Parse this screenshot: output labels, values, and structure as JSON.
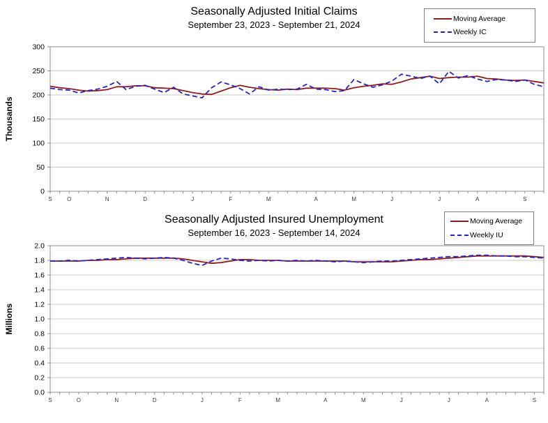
{
  "colors": {
    "moving_average": "#8B1E1E",
    "weekly": "#2525C4",
    "gridline": "#C9C9C9",
    "plot_border": "#8C8C8C",
    "tick": "#8C8C8C",
    "axis_text": "#000000",
    "month_label": "#3A3A3A",
    "legend_border": "#7F7F7F",
    "background": "#FFFFFF"
  },
  "chart_data": [
    {
      "type": "line",
      "title": "Seasonally Adjusted Initial Claims",
      "subtitle": "September 23, 2023 - September 21, 2024",
      "ylabel": "Thousands",
      "ylim": [
        0,
        300
      ],
      "ytick_labels": [
        "0",
        "50",
        "100",
        "150",
        "200",
        "250",
        "300"
      ],
      "ytick_values": [
        0,
        50,
        100,
        150,
        200,
        250,
        300
      ],
      "grid": true,
      "legend_position": "top-right",
      "n_weeks": 53,
      "x_month_labels": [
        "S",
        "O",
        "N",
        "D",
        "J",
        "F",
        "M",
        "A",
        "M",
        "J",
        "J",
        "A",
        "S"
      ],
      "x_month_week_indices": [
        0,
        2,
        6,
        10,
        15,
        19,
        23,
        28,
        32,
        36,
        41,
        45,
        50
      ],
      "series": [
        {
          "name": "Moving Average",
          "style": "solid",
          "color_key": "moving_average",
          "values": [
            218,
            215,
            213,
            210,
            208,
            209,
            211,
            217,
            217,
            219,
            219,
            215,
            214,
            213,
            209,
            205,
            202,
            201,
            208,
            215,
            220,
            216,
            213,
            211,
            210,
            212,
            211,
            214,
            214,
            214,
            213,
            210,
            215,
            218,
            220,
            223,
            222,
            227,
            233,
            236,
            239,
            234,
            236,
            237,
            237,
            239,
            234,
            233,
            231,
            230,
            231,
            228,
            225
          ]
        },
        {
          "name": "Weekly IC",
          "style": "dashed",
          "color_key": "weekly",
          "values": [
            214,
            211,
            210,
            204,
            209,
            212,
            218,
            228,
            211,
            218,
            220,
            212,
            205,
            216,
            202,
            198,
            194,
            215,
            227,
            221,
            213,
            202,
            217,
            210,
            212,
            211,
            212,
            222,
            212,
            211,
            207,
            209,
            232,
            223,
            216,
            221,
            229,
            243,
            239,
            234,
            239,
            223,
            249,
            235,
            240,
            233,
            228,
            232,
            231,
            228,
            231,
            222,
            217
          ]
        }
      ]
    },
    {
      "type": "line",
      "title": "Seasonally Adjusted Insured Unemployment",
      "subtitle": "September 16, 2023 - September 14, 2024",
      "ylabel": "Millions",
      "ylim": [
        0.0,
        2.0
      ],
      "ytick_labels": [
        "0.0",
        "0.2",
        "0.4",
        "0.6",
        "0.8",
        "1.0",
        "1.2",
        "1.4",
        "1.6",
        "1.8",
        "2.0"
      ],
      "ytick_values": [
        0.0,
        0.2,
        0.4,
        0.6,
        0.8,
        1.0,
        1.2,
        1.4,
        1.6,
        1.8,
        2.0
      ],
      "grid": true,
      "legend_position": "top-right",
      "n_weeks": 53,
      "x_month_labels": [
        "S",
        "O",
        "N",
        "D",
        "J",
        "F",
        "M",
        "A",
        "M",
        "J",
        "J",
        "A",
        "S"
      ],
      "x_month_week_indices": [
        0,
        3,
        7,
        11,
        16,
        20,
        24,
        29,
        33,
        37,
        42,
        46,
        51
      ],
      "series": [
        {
          "name": "Moving Average",
          "style": "solid",
          "color_key": "moving_average",
          "values": [
            1.79,
            1.79,
            1.79,
            1.79,
            1.8,
            1.8,
            1.81,
            1.81,
            1.82,
            1.83,
            1.83,
            1.83,
            1.83,
            1.83,
            1.82,
            1.8,
            1.78,
            1.76,
            1.77,
            1.79,
            1.81,
            1.81,
            1.8,
            1.8,
            1.8,
            1.79,
            1.79,
            1.79,
            1.79,
            1.79,
            1.79,
            1.79,
            1.78,
            1.78,
            1.78,
            1.78,
            1.78,
            1.79,
            1.8,
            1.81,
            1.81,
            1.82,
            1.83,
            1.84,
            1.85,
            1.86,
            1.86,
            1.86,
            1.86,
            1.86,
            1.86,
            1.85,
            1.84
          ]
        },
        {
          "name": "Weekly IU",
          "style": "dashed",
          "color_key": "weekly",
          "values": [
            1.79,
            1.79,
            1.8,
            1.79,
            1.8,
            1.81,
            1.82,
            1.83,
            1.84,
            1.83,
            1.82,
            1.83,
            1.84,
            1.83,
            1.8,
            1.76,
            1.73,
            1.79,
            1.83,
            1.82,
            1.8,
            1.79,
            1.8,
            1.79,
            1.8,
            1.79,
            1.8,
            1.79,
            1.8,
            1.79,
            1.78,
            1.79,
            1.78,
            1.77,
            1.78,
            1.79,
            1.79,
            1.8,
            1.81,
            1.82,
            1.83,
            1.84,
            1.85,
            1.85,
            1.86,
            1.87,
            1.87,
            1.86,
            1.86,
            1.85,
            1.85,
            1.84,
            1.83
          ]
        }
      ]
    }
  ]
}
